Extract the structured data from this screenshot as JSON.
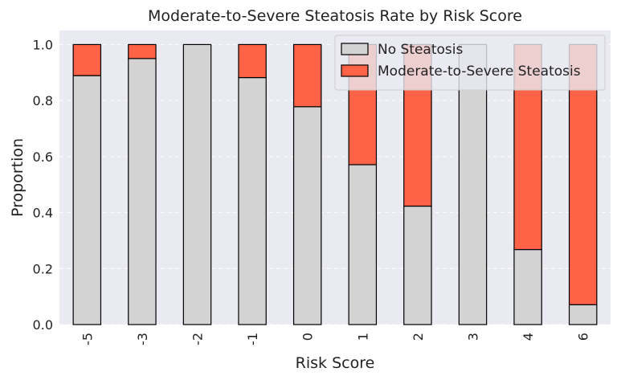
{
  "chart_data": {
    "type": "bar",
    "stacked": true,
    "title": "Moderate-to-Severe Steatosis Rate by Risk Score",
    "xlabel": "Risk Score",
    "ylabel": "Proportion",
    "ylim": [
      0,
      1.05
    ],
    "yticks": [
      "0.0",
      "0.2",
      "0.4",
      "0.6",
      "0.8",
      "1.0"
    ],
    "grid": true,
    "legend_position": "top-right",
    "categories": [
      "-5",
      "-3",
      "-2",
      "-1",
      "0",
      "1",
      "2",
      "3",
      "4",
      "6"
    ],
    "series": [
      {
        "name": "No Steatosis",
        "color": "#d3d3d3",
        "values": [
          0.889,
          0.95,
          1.0,
          0.882,
          0.778,
          0.571,
          0.423,
          1.0,
          0.268,
          0.071
        ]
      },
      {
        "name": "Moderate-to-Severe Steatosis",
        "color": "#ff6347",
        "values": [
          0.111,
          0.05,
          0.0,
          0.118,
          0.222,
          0.429,
          0.577,
          0.0,
          0.732,
          0.929
        ]
      }
    ],
    "background_color": "#eaeaf2"
  }
}
